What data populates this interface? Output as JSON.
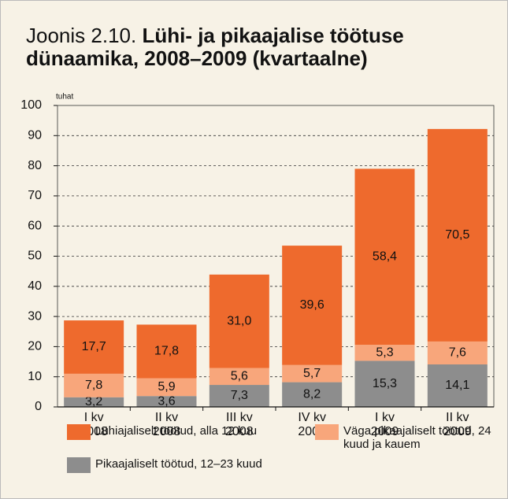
{
  "chart_data": {
    "type": "stacked_bar",
    "figure_label": "Joonis 2.10.",
    "title": "Lühi- ja pikaajalise töötuse dünaamika, 2008–2009 (kvartaalne)",
    "y_label": "tuhat",
    "categories": [
      [
        "I kv",
        "2008"
      ],
      [
        "II kv",
        "2008"
      ],
      [
        "III kv",
        "2008"
      ],
      [
        "IV kv",
        "2008"
      ],
      [
        "I kv",
        "2009"
      ],
      [
        "II kv",
        "2009"
      ]
    ],
    "series": [
      {
        "name": "Lühiajaliselt töötud, alla 12 kuu",
        "color": "#ee6a2d",
        "values": [
          17.7,
          17.8,
          31.0,
          39.6,
          58.4,
          70.5
        ],
        "value_labels": [
          "17,7",
          "17,8",
          "31,0",
          "39,6",
          "58,4",
          "70,5"
        ]
      },
      {
        "name": "Väga pikaajaliselt töötud, 24 kuud ja kauem",
        "color": "#f8a67b",
        "values": [
          7.8,
          5.9,
          5.6,
          5.7,
          5.3,
          7.6
        ],
        "value_labels": [
          "7,8",
          "5,9",
          "5,6",
          "5,7",
          "5,3",
          "7,6"
        ]
      },
      {
        "name": "Pikaajaliselt töötud, 12–23 kuud",
        "color": "#8d8d8d",
        "values": [
          3.2,
          3.6,
          7.3,
          8.2,
          15.3,
          14.1
        ],
        "value_labels": [
          "3,2",
          "3,6",
          "7,3",
          "8,2",
          "15,3",
          "14,1"
        ]
      }
    ],
    "ylim": [
      0,
      100
    ],
    "yticks": [
      0,
      10,
      20,
      30,
      40,
      50,
      60,
      70,
      80,
      90,
      100
    ],
    "grid": true
  }
}
